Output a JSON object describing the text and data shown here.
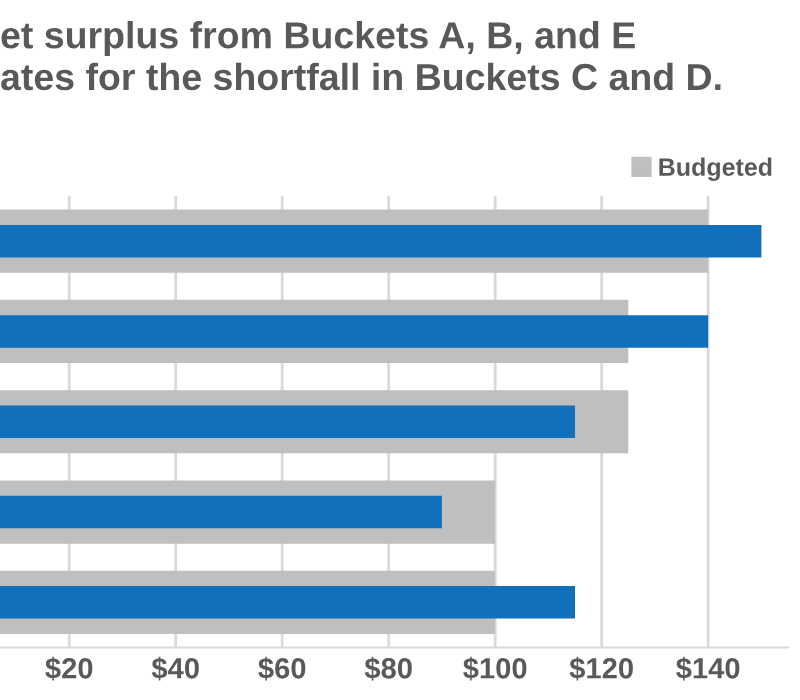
{
  "chart_data": {
    "type": "bar",
    "orientation": "horizontal",
    "title": "et surplus from Buckets A, B, and E\nates for the shortfall in Buckets C and D.",
    "categories": [
      null,
      null,
      null,
      null,
      null
    ],
    "series": [
      {
        "name": "Budgeted",
        "color": "#bfbfbf",
        "values": [
          140,
          125,
          125,
          100,
          100
        ]
      },
      {
        "color": "#1070bb",
        "values": [
          150,
          140,
          115,
          90,
          115
        ]
      }
    ],
    "xlim": [
      7,
      155
    ],
    "xticks": [
      {
        "value": 20,
        "label": "$20"
      },
      {
        "value": 40,
        "label": "$40"
      },
      {
        "value": 60,
        "label": "$60"
      },
      {
        "value": 80,
        "label": "$80"
      },
      {
        "value": 100,
        "label": "$100"
      },
      {
        "value": 120,
        "label": "$120"
      },
      {
        "value": 140,
        "label": "$140"
      }
    ],
    "grid": "x",
    "legend": "top right",
    "tick_labels": "x"
  }
}
